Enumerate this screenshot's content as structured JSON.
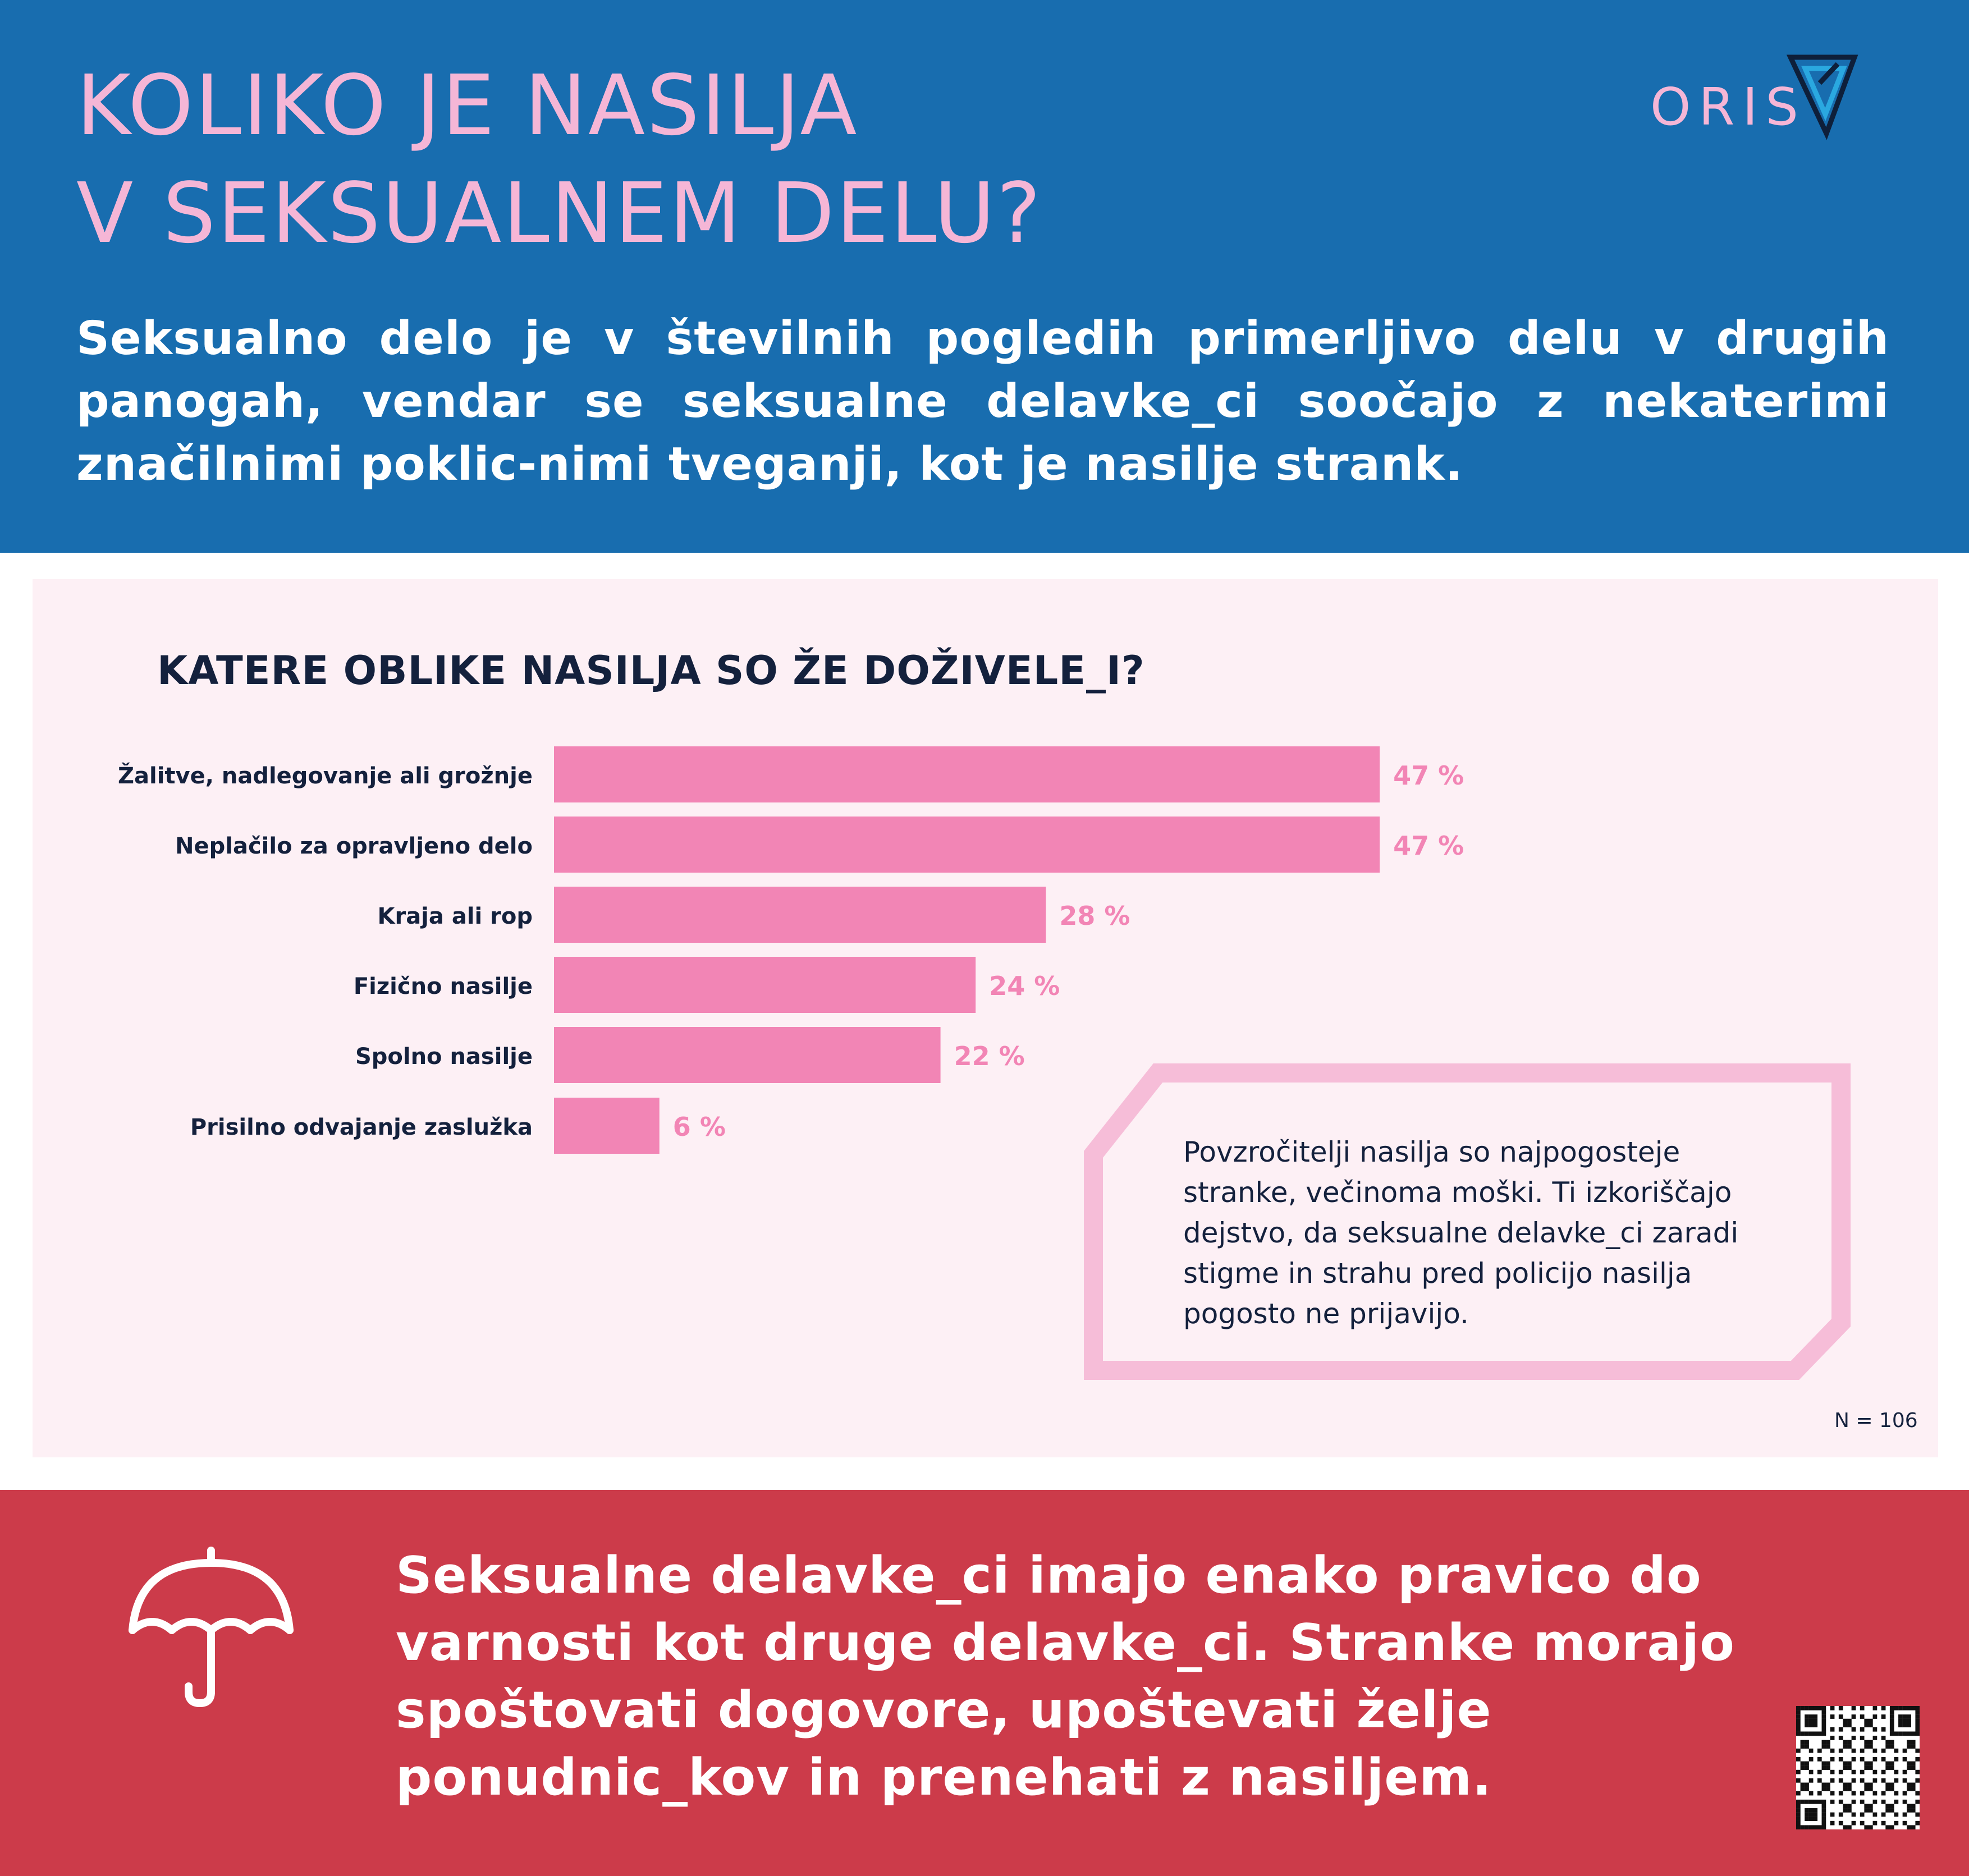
{
  "header": {
    "title_lines": [
      "KOLIKO JE NASILJA",
      "V SEKSUALNEM DELU?"
    ],
    "logo_text": "ORIS",
    "intro": "Seksualno delo je v številnih pogledih primerljivo delu v drugih panogah, vendar se seksualne delavke_ci soočajo z nekaterimi značilnimi poklic-nimi tveganji, kot je nasilje strank."
  },
  "chart_data": {
    "type": "bar",
    "orientation": "horizontal",
    "title": "KATERE OBLIKE NASILJA SO ŽE DOŽIVELE_I?",
    "categories": [
      "Žalitve, nadlegovanje ali grožnje",
      "Neplačilo za opravljeno delo",
      "Kraja ali rop",
      "Fizično nasilje",
      "Spolno nasilje",
      "Prisilno odvajanje zaslužka"
    ],
    "values": [
      47,
      47,
      28,
      24,
      22,
      6
    ],
    "value_labels": [
      "47 %",
      "47 %",
      "28 %",
      "24 %",
      "22 %",
      "6 %"
    ],
    "unit": "%",
    "xlim": [
      0,
      100
    ],
    "grid": false,
    "legend": "none",
    "note": "N = 106"
  },
  "callout": {
    "text": "Povzročitelji nasilja so najpogosteje stranke, večinoma moški. Ti izkoriščajo dejstvo, da seksualne delavke_ci zaradi stigme in strahu pred policijo nasilja pogosto ne prijavijo."
  },
  "footer": {
    "icon": "umbrella-icon",
    "text": "Seksualne delavke_ci imajo enako pravico do varnosti kot druge delavke_ci. Stranke morajo spoštovati dogovore, upoštevati želje ponudnic_kov in prenehati z nasiljem."
  },
  "colors": {
    "header_bg": "#186daf",
    "title_pink": "#f5b6d6",
    "bar_pink": "#f285b5",
    "panel_bg": "#fdf0f5",
    "navy_text": "#14213d",
    "footer_bg": "#cc3b4a"
  }
}
